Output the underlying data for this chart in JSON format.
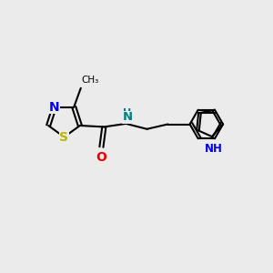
{
  "bg_color": "#ebebeb",
  "bond_color": "#000000",
  "S_color": "#b8b800",
  "N_color": "#0000ee",
  "O_color": "#ee0000",
  "NH_amide_color": "#008080",
  "NH_indole_color": "#0000ee",
  "line_width": 1.5,
  "font_size": 9,
  "figsize": [
    3.0,
    3.0
  ],
  "dpi": 100,
  "xlim": [
    0,
    10
  ],
  "ylim": [
    0,
    10
  ]
}
